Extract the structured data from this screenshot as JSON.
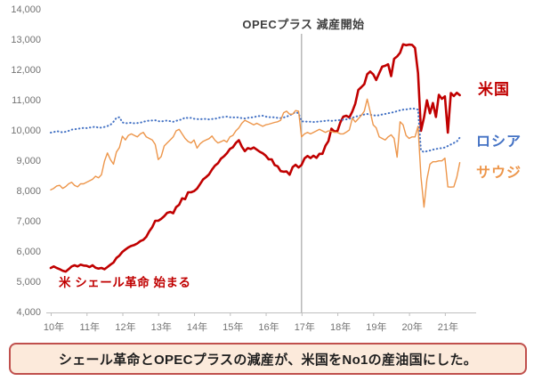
{
  "caption": {
    "text": "シェール革命とOPECプラスの減産が、米国をNo1の産油国にした。"
  },
  "chart_data": {
    "type": "line",
    "x_start": "2010-01",
    "x_interval": "monthly",
    "x_tick_labels": [
      "10年",
      "11年",
      "12年",
      "13年",
      "14年",
      "15年",
      "16年",
      "17年",
      "18年",
      "19年",
      "20年",
      "21年"
    ],
    "y_tick_labels": [
      "14,000",
      "13,000",
      "12,000",
      "11,000",
      "10,000",
      "9,000",
      "8,000",
      "7,000",
      "6,000",
      "5,000",
      "4,000"
    ],
    "ylim": [
      4000,
      14000
    ],
    "grid": "none",
    "legend_position": "right-inline-labels",
    "annotations": {
      "opec": "OPECプラス 減産開始",
      "opec_event_x": "2017-01",
      "shale": "米 シェール革命 始まる"
    },
    "colors": {
      "us": "#c00000",
      "russia": "#4472c4",
      "saudi": "#ed964b",
      "event_line": "#a6a6a6",
      "axis": "#bfbfbf",
      "tick_text": "#737373"
    },
    "series": [
      {
        "key": "us",
        "name": "米国",
        "color": "#c00000",
        "style": "solid",
        "width": 2.6,
        "values": [
          5470,
          5520,
          5470,
          5430,
          5380,
          5350,
          5430,
          5520,
          5560,
          5520,
          5580,
          5550,
          5540,
          5500,
          5560,
          5480,
          5450,
          5470,
          5430,
          5500,
          5580,
          5650,
          5800,
          5880,
          6000,
          6080,
          6150,
          6200,
          6230,
          6280,
          6360,
          6400,
          6500,
          6680,
          6820,
          7030,
          7030,
          7090,
          7180,
          7290,
          7320,
          7280,
          7480,
          7560,
          7770,
          7740,
          7970,
          7970,
          8010,
          8090,
          8240,
          8390,
          8470,
          8560,
          8720,
          8850,
          8930,
          9080,
          9160,
          9260,
          9400,
          9460,
          9600,
          9690,
          9480,
          9330,
          9430,
          9400,
          9450,
          9380,
          9310,
          9260,
          9180,
          9060,
          9060,
          8870,
          8830,
          8670,
          8650,
          8660,
          8550,
          8800,
          8880,
          8790,
          8870,
          9090,
          9170,
          9100,
          9180,
          9110,
          9240,
          9240,
          9510,
          9660,
          10070,
          9980,
          9990,
          10280,
          10470,
          10500,
          10440,
          10640,
          10900,
          11350,
          11440,
          11540,
          11870,
          11960,
          11870,
          11680,
          11910,
          12120,
          12150,
          12200,
          11810,
          12380,
          12460,
          12580,
          12860,
          12830,
          12850,
          12840,
          12740,
          11910,
          10000,
          10440,
          11010,
          10580,
          10920,
          10460,
          11190,
          11060,
          11140,
          9940,
          11250,
          11150,
          11260,
          11180
        ]
      },
      {
        "key": "russia",
        "name": "ロシア",
        "color": "#4472c4",
        "style": "dotted",
        "width": 2,
        "values": [
          9940,
          9960,
          9990,
          9970,
          9950,
          9970,
          10000,
          10040,
          10050,
          10070,
          10080,
          10100,
          10090,
          10110,
          10120,
          10140,
          10100,
          10110,
          10130,
          10160,
          10200,
          10300,
          10430,
          10450,
          10280,
          10250,
          10260,
          10270,
          10250,
          10260,
          10270,
          10300,
          10320,
          10340,
          10340,
          10350,
          10320,
          10310,
          10330,
          10340,
          10320,
          10300,
          10330,
          10360,
          10380,
          10440,
          10420,
          10430,
          10400,
          10390,
          10380,
          10400,
          10390,
          10380,
          10390,
          10400,
          10420,
          10450,
          10460,
          10470,
          10450,
          10440,
          10450,
          10440,
          10420,
          10410,
          10430,
          10440,
          10450,
          10480,
          10490,
          10500,
          10470,
          10450,
          10460,
          10440,
          10430,
          10420,
          10440,
          10470,
          10510,
          10570,
          10620,
          10580,
          10320,
          10300,
          10310,
          10300,
          10290,
          10300,
          10310,
          10320,
          10330,
          10340,
          10330,
          10340,
          10350,
          10360,
          10370,
          10380,
          10400,
          10430,
          10470,
          10490,
          10510,
          10540,
          10560,
          10530,
          10520,
          10500,
          10520,
          10540,
          10560,
          10580,
          10600,
          10620,
          10650,
          10680,
          10700,
          10710,
          10720,
          10740,
          10730,
          10700,
          9350,
          9300,
          9330,
          9350,
          9380,
          9400,
          9420,
          9430,
          9450,
          9500,
          9550,
          9600,
          9650,
          9780
        ]
      },
      {
        "key": "saudi",
        "name": "サウジ",
        "color": "#ed964b",
        "style": "solid",
        "width": 1.4,
        "values": [
          8050,
          8100,
          8180,
          8200,
          8100,
          8160,
          8250,
          8300,
          8200,
          8150,
          8250,
          8250,
          8300,
          8350,
          8400,
          8500,
          8450,
          8550,
          9000,
          9270,
          9050,
          8900,
          9300,
          9450,
          9820,
          9700,
          9850,
          9900,
          9850,
          9800,
          9900,
          9950,
          9800,
          9750,
          9700,
          9550,
          9050,
          9150,
          9500,
          9600,
          9700,
          9800,
          10000,
          10050,
          9900,
          9750,
          9650,
          9600,
          9700,
          9430,
          9570,
          9650,
          9700,
          9740,
          9830,
          9690,
          9600,
          9640,
          9690,
          9630,
          9800,
          9850,
          10000,
          10100,
          10250,
          10350,
          10300,
          10250,
          10200,
          10250,
          10200,
          10150,
          10200,
          10220,
          10250,
          10280,
          10300,
          10350,
          10600,
          10650,
          10550,
          10550,
          10670,
          10650,
          9800,
          9900,
          9950,
          9900,
          9950,
          10000,
          10050,
          10000,
          9950,
          10000,
          9980,
          9950,
          9950,
          9900,
          9900,
          9960,
          10030,
          10420,
          10290,
          10400,
          10510,
          10650,
          11050,
          10630,
          10200,
          10100,
          9800,
          9750,
          9700,
          9800,
          9870,
          9750,
          9130,
          10300,
          10200,
          9850,
          9750,
          9800,
          9800,
          10150,
          8480,
          7480,
          8400,
          8900,
          8980,
          8980,
          9010,
          9010,
          9100,
          8150,
          8140,
          8150,
          8470,
          8950
        ]
      }
    ]
  }
}
